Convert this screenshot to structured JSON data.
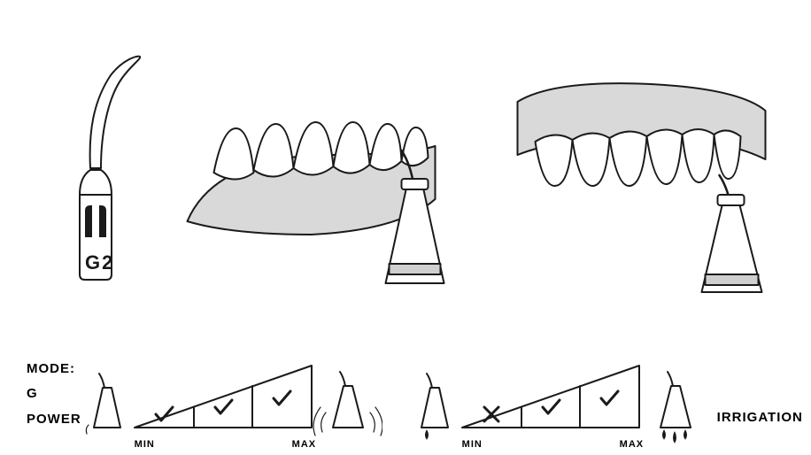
{
  "tip": {
    "label": "G2"
  },
  "labels": {
    "mode": "MODE: G",
    "power": "POWER",
    "irrigation": "IRRIGATION",
    "min": "MIN",
    "max": "MAX"
  },
  "colors": {
    "stroke": "#1a1a1a",
    "gum": "#d9d9d9",
    "tooth_fill": "#ffffff",
    "handle_fill": "#ffffff",
    "handle_band": "#cfcfcf",
    "mark_ok": "#1a1a1a",
    "mark_no": "#1a1a1a"
  },
  "power_gauge": {
    "segments": [
      {
        "mark": "check"
      },
      {
        "mark": "check"
      },
      {
        "mark": "check"
      }
    ],
    "left_icon": "vibration-low",
    "right_icon": "vibration-high"
  },
  "irrigation_gauge": {
    "segments": [
      {
        "mark": "cross"
      },
      {
        "mark": "check"
      },
      {
        "mark": "check"
      }
    ],
    "left_icon": "drip-low",
    "right_icon": "drip-high"
  },
  "diagram": {
    "type": "infographic",
    "panels": [
      "tip",
      "lower-jaw-usage",
      "upper-jaw-usage"
    ],
    "stroke_width_main": 2,
    "stroke_width_thin": 1.5
  }
}
